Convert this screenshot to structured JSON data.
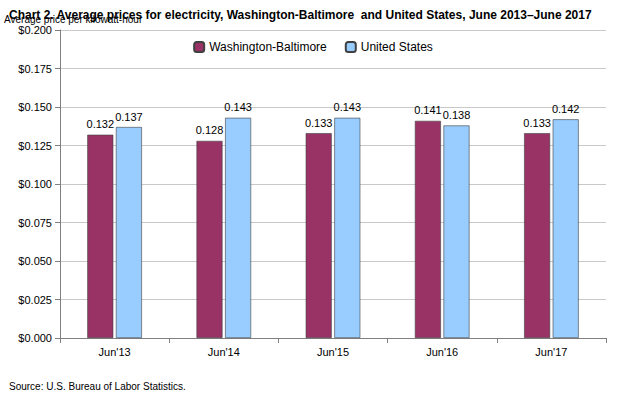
{
  "chart_data": {
    "type": "bar",
    "title": "Chart 2. Average prices for electricity, Washington-Baltimore  and United States, June 2013–June 2017",
    "ylabel": "Average price per kilowatt-hour",
    "annotations": [
      "Source: U.S. Bureau of Labor Statistics."
    ],
    "categories": [
      "Jun'13",
      "Jun'14",
      "Jun'15",
      "Jun'16",
      "Jun'17"
    ],
    "series": [
      {
        "name": "Washington-Baltimore",
        "color": "#993366",
        "values": [
          0.132,
          0.128,
          0.133,
          0.141,
          0.133
        ]
      },
      {
        "name": "United States",
        "color": "#99ccff",
        "values": [
          0.137,
          0.143,
          0.143,
          0.138,
          0.142
        ]
      }
    ],
    "ylim": [
      0,
      0.2
    ],
    "yticks": [
      {
        "value": 0,
        "label": "$0.000"
      },
      {
        "value": 0.025,
        "label": "$0.025"
      },
      {
        "value": 0.05,
        "label": "$0.050"
      },
      {
        "value": 0.075,
        "label": "$0.075"
      },
      {
        "value": 0.1,
        "label": "$0.100"
      },
      {
        "value": 0.125,
        "label": "$0.125"
      },
      {
        "value": 0.15,
        "label": "$0.150"
      },
      {
        "value": 0.175,
        "label": "$0.175"
      },
      {
        "value": 0.2,
        "label": "$0.200"
      }
    ],
    "grid": true,
    "legend": "top",
    "data_labels": true
  }
}
